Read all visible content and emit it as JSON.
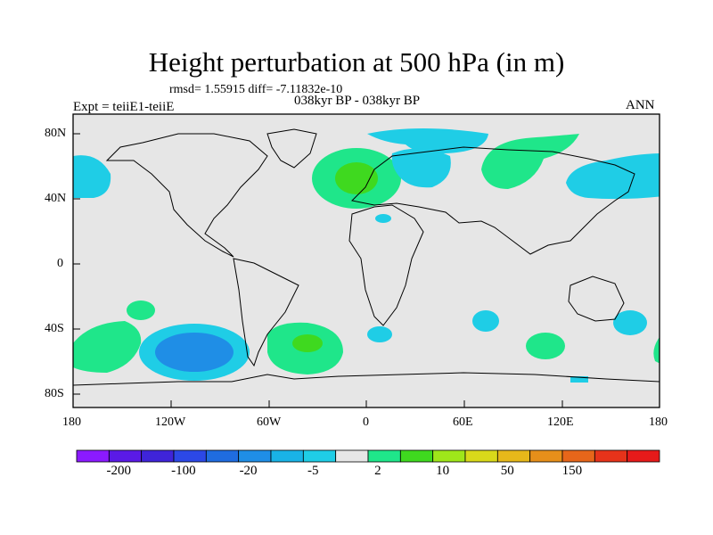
{
  "title": "Height perturbation at 500 hPa (in m)",
  "stats": "rmsd= 1.55915 diff= -7.11832e-10",
  "periods": "038kyr BP - 038kyr BP",
  "experiment": "Expt = teiiE1-teiiE",
  "season": "ANN",
  "lat_labels": [
    "80N",
    "40N",
    "0",
    "40S",
    "80S"
  ],
  "lon_labels": [
    "180",
    "120W",
    "60W",
    "0",
    "60E",
    "120E",
    "180"
  ],
  "colorbar": {
    "colors": [
      "#8b1aff",
      "#5a1ae6",
      "#3f24d9",
      "#2c48e6",
      "#1f6ce0",
      "#1f8ee6",
      "#19b3e6",
      "#1fcde6",
      "#e6e6e6",
      "#1fe68a",
      "#3fd91f",
      "#9fe61a",
      "#d9d91a",
      "#e6b81a",
      "#e68f1a",
      "#e6661a",
      "#e6331a",
      "#e61a1a"
    ],
    "labels": [
      "-200",
      "-100",
      "-20",
      "-5",
      "2",
      "10",
      "50",
      "150"
    ]
  },
  "legend_colors": {
    "ocean_bg": "#e6e6e6",
    "green": "#1fe68a",
    "dark_green": "#3fd91f",
    "cyan": "#19c8e6",
    "blue": "#1f8ee6"
  }
}
